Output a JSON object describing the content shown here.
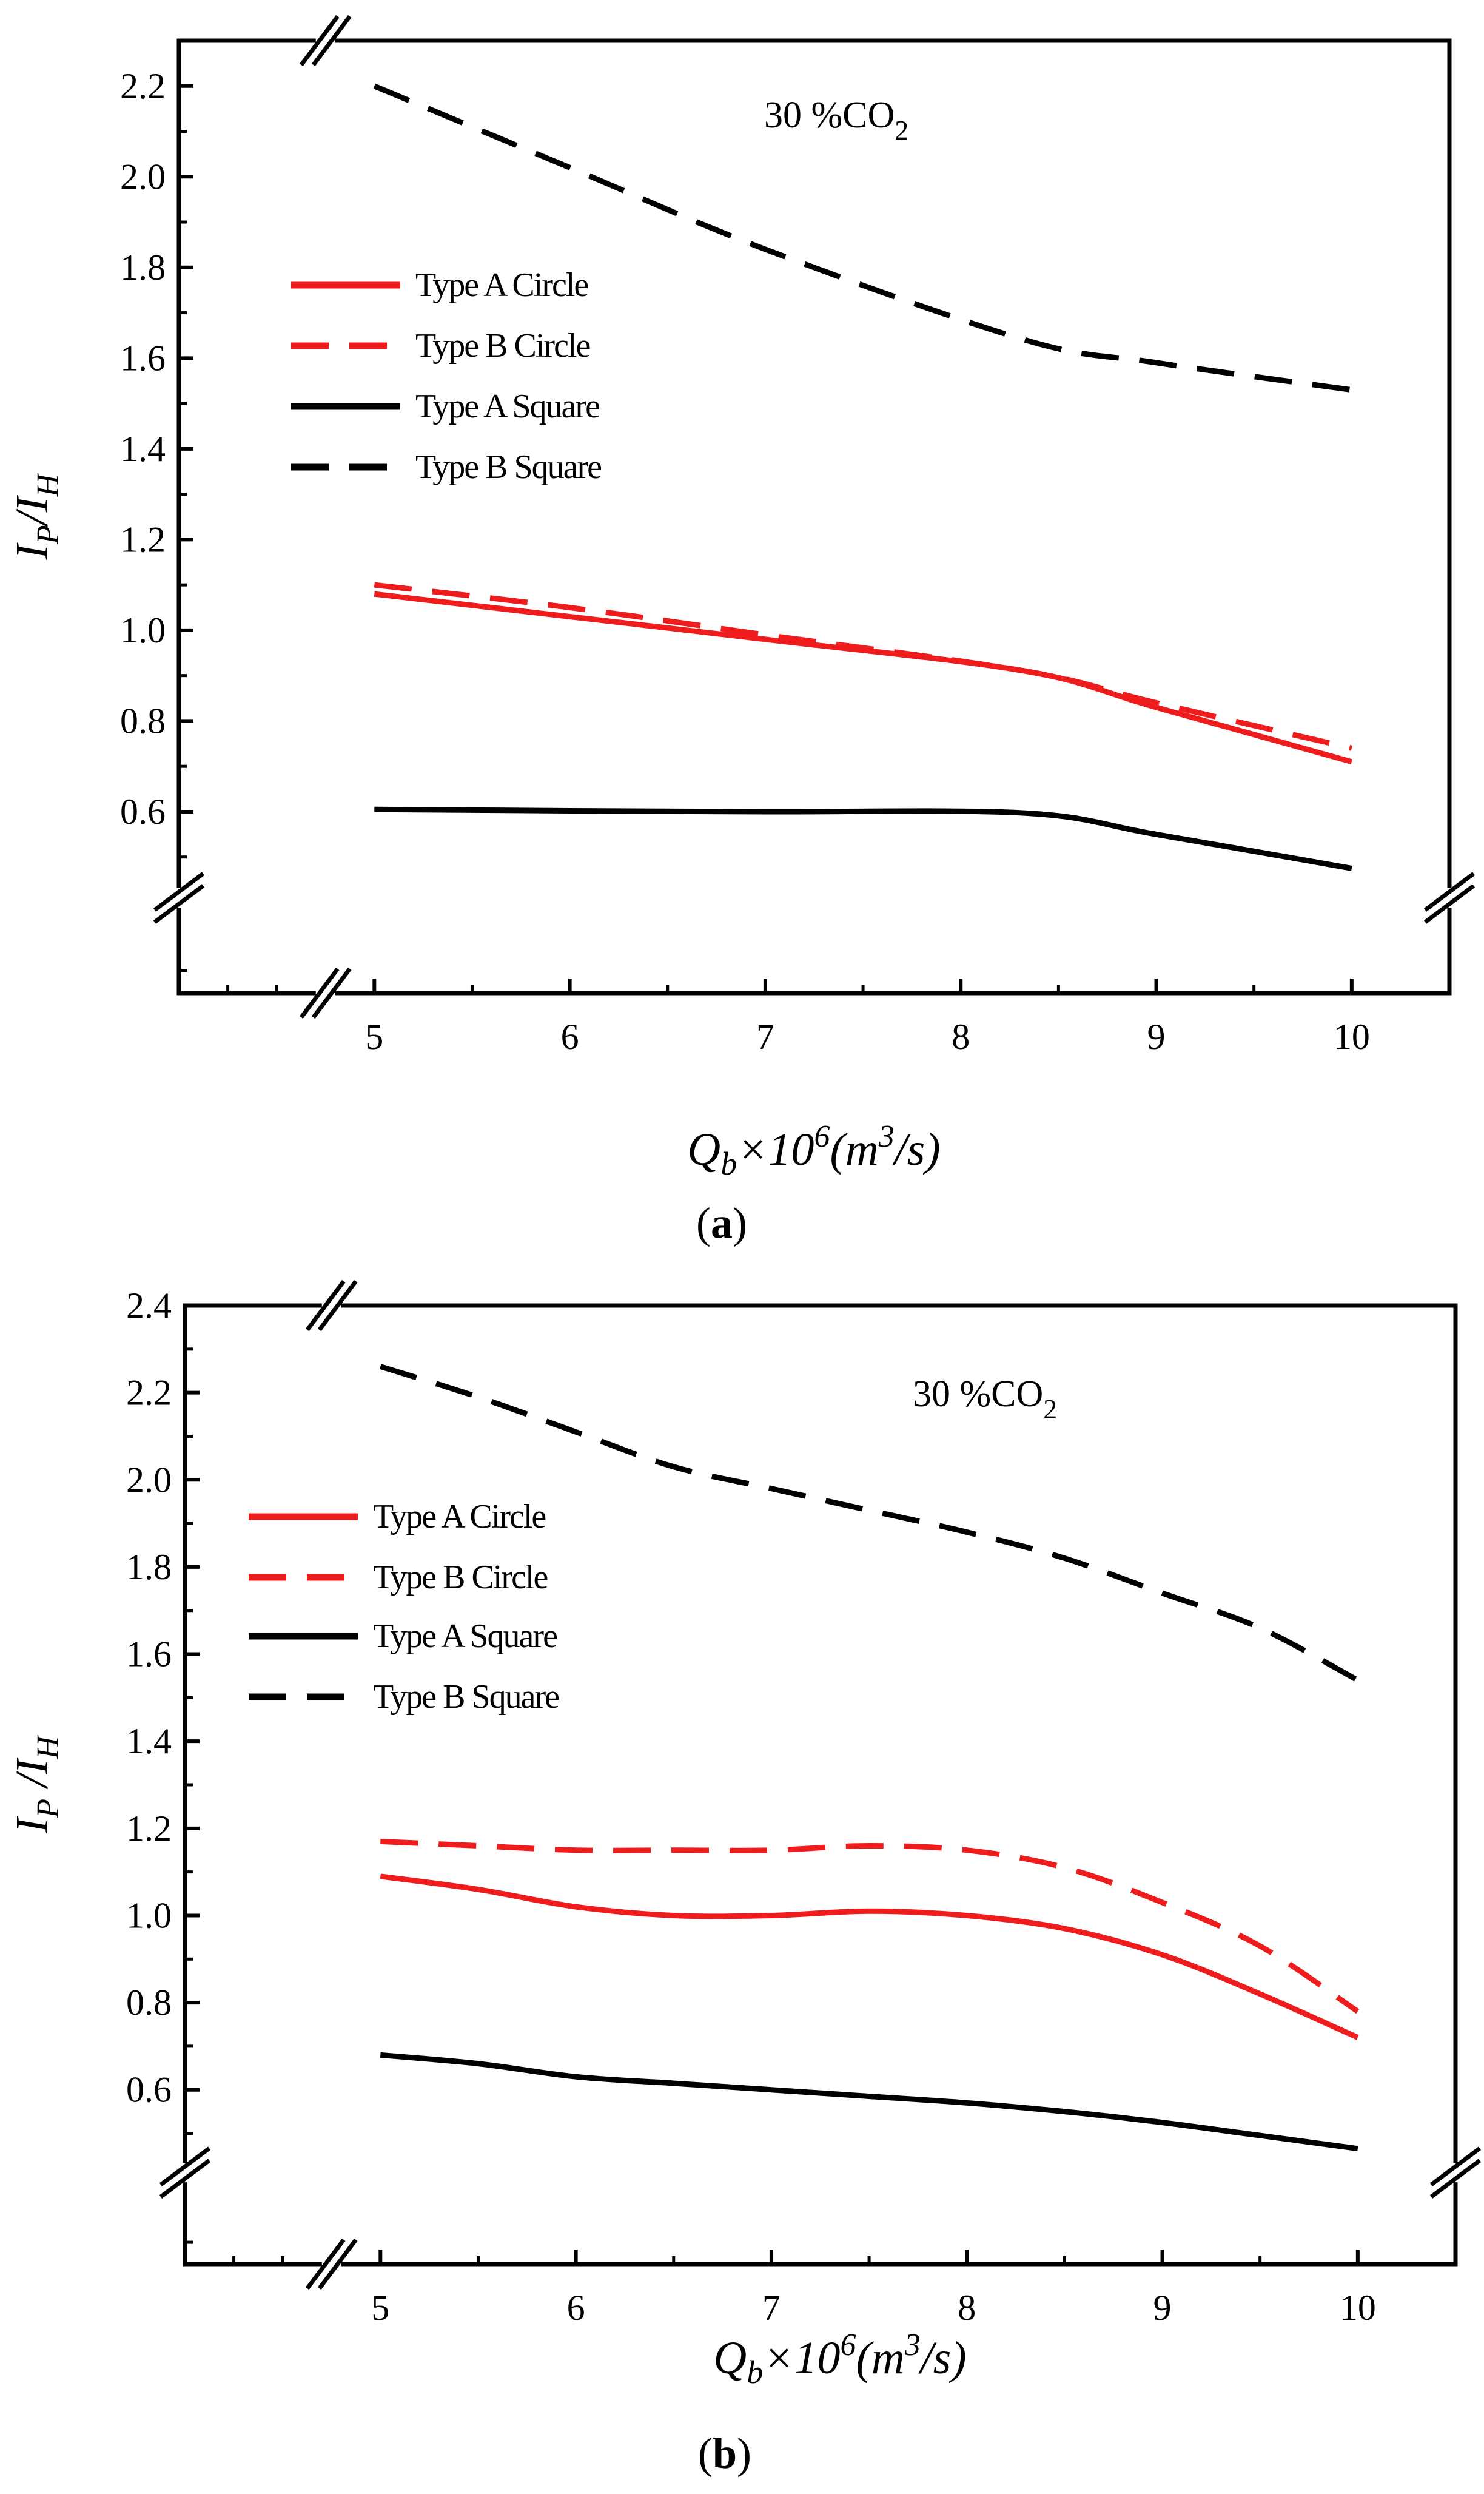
{
  "chart_data": [
    {
      "type": "line",
      "panel": "a",
      "caption_open": "(",
      "caption_letter": "a",
      "caption_close": ")",
      "annotation": {
        "prefix": "30 %CO",
        "subscript": "2"
      },
      "ylabel": {
        "main1": "I",
        "sub1": "P",
        "sep": "/",
        "main2": "I",
        "sub2": "H"
      },
      "xlabel": {
        "q": "Q",
        "qsub": "b",
        "times": "×10",
        "exp": "6",
        "open": "(",
        "m": "m",
        "mexp": "3",
        "tail": "/s)"
      },
      "xlim": [
        4.0,
        10.5
      ],
      "ylim": [
        0.2,
        2.3
      ],
      "x_ticks": [
        5,
        6,
        7,
        8,
        9,
        10
      ],
      "x_tick_labels": [
        "5",
        "6",
        "7",
        "8",
        "9",
        "10"
      ],
      "y_ticks": [
        0.6,
        0.8,
        1.0,
        1.2,
        1.4,
        1.6,
        1.8,
        2.0,
        2.2
      ],
      "y_tick_labels": [
        "0.6",
        "0.8",
        "1.0",
        "1.2",
        "1.4",
        "1.6",
        "1.8",
        "2.0",
        "2.2"
      ],
      "legend_position": "center-left",
      "series": [
        {
          "name": "Type A Circle",
          "color": "#ee1c1c",
          "dash": "solid",
          "x": [
            5,
            6,
            7,
            8.33,
            9,
            10
          ],
          "values": [
            1.08,
            1.03,
            0.98,
            0.91,
            0.83,
            0.71
          ]
        },
        {
          "name": "Type B Circle",
          "color": "#ee1c1c",
          "dash": "dashed",
          "x": [
            5,
            6,
            7,
            8.33,
            9,
            10
          ],
          "values": [
            1.1,
            1.05,
            0.99,
            0.91,
            0.84,
            0.74
          ]
        },
        {
          "name": "Type A Square",
          "color": "#000000",
          "dash": "solid",
          "x": [
            5,
            6,
            7,
            8.33,
            9,
            10
          ],
          "values": [
            0.605,
            0.602,
            0.6,
            0.597,
            0.55,
            0.475
          ]
        },
        {
          "name": "Type B Square",
          "color": "#000000",
          "dash": "dashed",
          "x": [
            5,
            6,
            7,
            8.33,
            9,
            10
          ],
          "values": [
            2.2,
            2.02,
            1.84,
            1.64,
            1.59,
            1.53
          ]
        }
      ]
    },
    {
      "type": "line",
      "panel": "b",
      "caption_open": "(",
      "caption_letter": "b",
      "caption_close": ")",
      "annotation": {
        "prefix": "30 %CO",
        "subscript": "2"
      },
      "ylabel": {
        "main1": "I",
        "sub1": "P",
        "sep": " /",
        "main2": "I",
        "sub2": "H"
      },
      "xlabel": {
        "q": "Q",
        "qsub": "b",
        "times": "×10",
        "exp": "6",
        "open": "(",
        "m": "m",
        "mexp": "3",
        "tail": "/s)"
      },
      "xlim": [
        4.0,
        10.5
      ],
      "ylim": [
        0.2,
        2.4
      ],
      "x_ticks": [
        5,
        6,
        7,
        8,
        9,
        10
      ],
      "x_tick_labels": [
        "5",
        "6",
        "7",
        "8",
        "9",
        "10"
      ],
      "y_ticks": [
        0.6,
        0.8,
        1.0,
        1.2,
        1.4,
        1.6,
        1.8,
        2.0,
        2.2,
        2.4
      ],
      "y_tick_labels": [
        "0.6",
        "0.8",
        "1.0",
        "1.2",
        "1.4",
        "1.6",
        "1.8",
        "2.0",
        "2.2",
        "2.4"
      ],
      "legend_position": "center-left",
      "series": [
        {
          "name": "Type A Circle",
          "color": "#ee1c1c",
          "dash": "solid",
          "x": [
            5,
            5.5,
            6,
            6.5,
            7,
            7.5,
            8,
            8.5,
            9,
            9.5,
            10
          ],
          "values": [
            1.09,
            1.06,
            1.02,
            1.0,
            1.0,
            1.01,
            1.0,
            0.97,
            0.91,
            0.82,
            0.72
          ]
        },
        {
          "name": "Type B Circle",
          "color": "#ee1c1c",
          "dash": "dashed",
          "x": [
            5,
            5.5,
            6,
            6.5,
            7,
            7.5,
            8,
            8.5,
            9,
            9.5,
            10
          ],
          "values": [
            1.17,
            1.16,
            1.15,
            1.15,
            1.15,
            1.16,
            1.15,
            1.11,
            1.03,
            0.93,
            0.78
          ]
        },
        {
          "name": "Type A Square",
          "color": "#000000",
          "dash": "solid",
          "x": [
            5,
            5.5,
            6,
            6.5,
            7,
            7.5,
            8,
            8.5,
            9,
            9.5,
            10
          ],
          "values": [
            0.68,
            0.66,
            0.63,
            0.615,
            0.6,
            0.585,
            0.57,
            0.55,
            0.525,
            0.495,
            0.465
          ]
        },
        {
          "name": "Type B Square",
          "color": "#000000",
          "dash": "dashed",
          "x": [
            5,
            5.5,
            6,
            6.5,
            7,
            7.5,
            8,
            8.5,
            9,
            9.5,
            10
          ],
          "values": [
            2.26,
            2.19,
            2.11,
            2.03,
            1.98,
            1.93,
            1.88,
            1.82,
            1.74,
            1.66,
            1.54
          ]
        }
      ]
    }
  ]
}
